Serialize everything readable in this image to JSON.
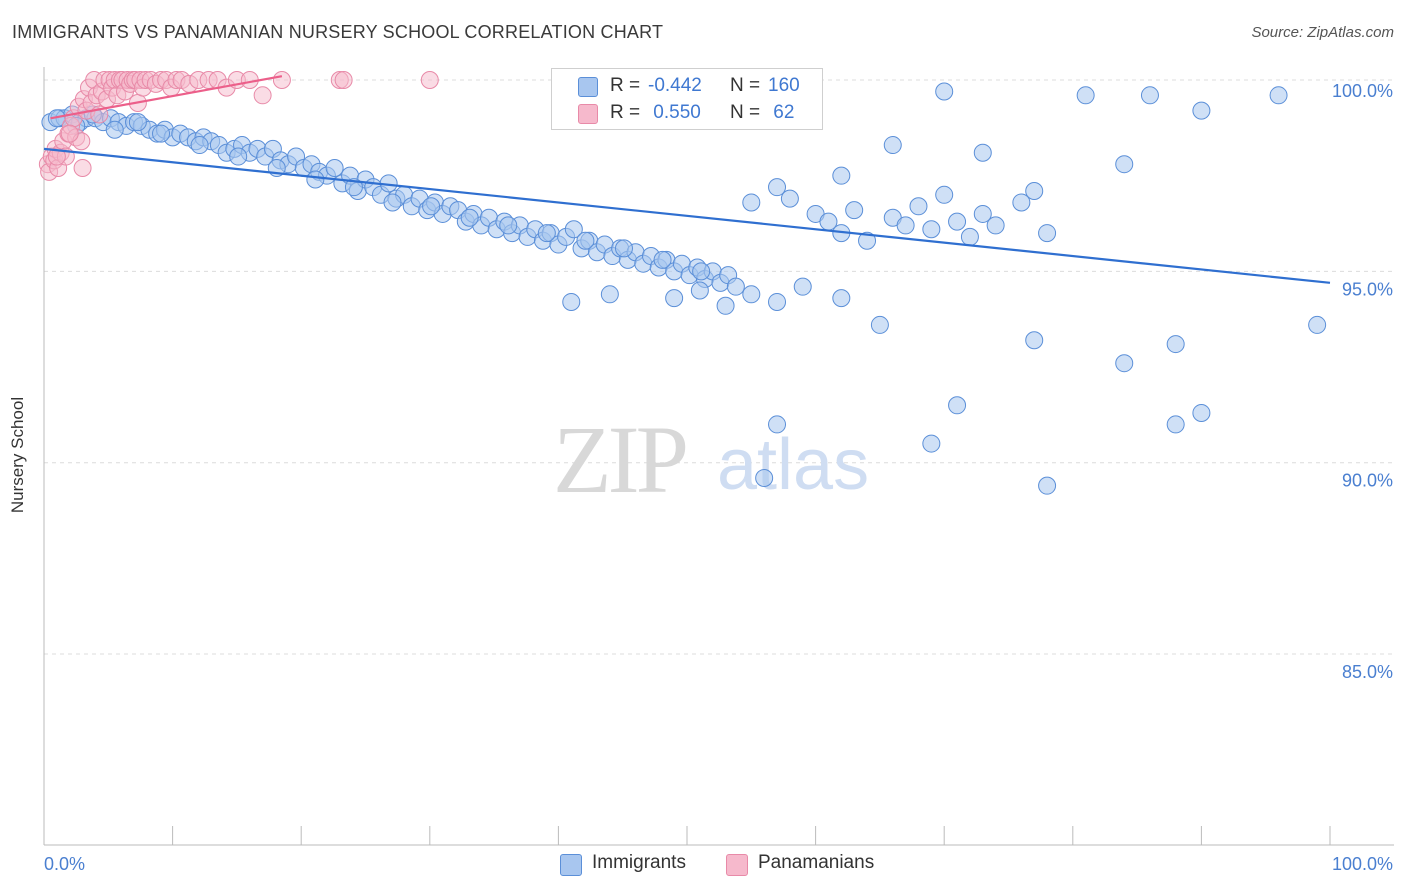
{
  "title": "IMMIGRANTS VS PANAMANIAN NURSERY SCHOOL CORRELATION CHART",
  "source": "Source: ZipAtlas.com",
  "watermark": {
    "zip": "ZIP",
    "atlas": "atlas"
  },
  "colors": {
    "blue_fill": "#a8c6ef",
    "blue_stroke": "#5b8fd8",
    "blue_line": "#2f6fd0",
    "pink_fill": "#f6b9cc",
    "pink_stroke": "#e88aa8",
    "pink_line": "#ec5f8a",
    "tick_label": "#4a7fd0",
    "grid": "#dcdcdc"
  },
  "legend": {
    "rows": [
      {
        "r_label": "R =",
        "r_value": "-0.442",
        "n_label": "N =",
        "n_value": "160"
      },
      {
        "r_label": "R =",
        "r_value": " 0.550",
        "n_label": "N =",
        "n_value": " 62"
      }
    ]
  },
  "bottom_legend": {
    "immigrants": "Immigrants",
    "panamanians": "Panamanians"
  },
  "chart_data": {
    "type": "scatter",
    "title": "IMMIGRANTS VS PANAMANIAN NURSERY SCHOOL CORRELATION CHART",
    "xlabel": "",
    "ylabel": "Nursery School",
    "xlim": [
      0,
      105
    ],
    "ylim": [
      80.5,
      100.3
    ],
    "x_tick_labels": [
      "0.0%",
      "100.0%"
    ],
    "y_ticks": [
      100,
      95,
      90,
      85
    ],
    "y_tick_labels": [
      "100.0%",
      "95.0%",
      "90.0%",
      "85.0%"
    ],
    "x_minor_ticks": [
      0,
      10,
      20,
      30,
      40,
      50,
      60,
      70,
      80,
      90,
      100
    ],
    "series": [
      {
        "name": "Immigrants",
        "color": "#a8c6ef",
        "trend": {
          "x": [
            0,
            100
          ],
          "y": [
            98.2,
            94.7
          ]
        },
        "points": [
          [
            0.5,
            98.9
          ],
          [
            1.2,
            99.0
          ],
          [
            1.6,
            99.0
          ],
          [
            2.2,
            99.1
          ],
          [
            2.8,
            98.9
          ],
          [
            3.3,
            99.0
          ],
          [
            4.0,
            99.0
          ],
          [
            4.6,
            98.9
          ],
          [
            5.2,
            99.0
          ],
          [
            5.8,
            98.9
          ],
          [
            6.4,
            98.8
          ],
          [
            7.0,
            98.9
          ],
          [
            7.6,
            98.8
          ],
          [
            8.2,
            98.7
          ],
          [
            8.8,
            98.6
          ],
          [
            9.4,
            98.7
          ],
          [
            10.0,
            98.5
          ],
          [
            10.6,
            98.6
          ],
          [
            11.2,
            98.5
          ],
          [
            11.8,
            98.4
          ],
          [
            12.4,
            98.5
          ],
          [
            13.0,
            98.4
          ],
          [
            13.6,
            98.3
          ],
          [
            14.2,
            98.1
          ],
          [
            14.8,
            98.2
          ],
          [
            15.4,
            98.3
          ],
          [
            16.0,
            98.1
          ],
          [
            16.6,
            98.2
          ],
          [
            17.2,
            98.0
          ],
          [
            17.8,
            98.2
          ],
          [
            18.4,
            97.9
          ],
          [
            19.0,
            97.8
          ],
          [
            19.6,
            98.0
          ],
          [
            20.2,
            97.7
          ],
          [
            20.8,
            97.8
          ],
          [
            21.4,
            97.6
          ],
          [
            22.0,
            97.5
          ],
          [
            22.6,
            97.7
          ],
          [
            23.2,
            97.3
          ],
          [
            23.8,
            97.5
          ],
          [
            24.4,
            97.1
          ],
          [
            25.0,
            97.4
          ],
          [
            25.6,
            97.2
          ],
          [
            26.2,
            97.0
          ],
          [
            26.8,
            97.3
          ],
          [
            27.4,
            96.9
          ],
          [
            28.0,
            97.0
          ],
          [
            28.6,
            96.7
          ],
          [
            29.2,
            96.9
          ],
          [
            29.8,
            96.6
          ],
          [
            30.4,
            96.8
          ],
          [
            31.0,
            96.5
          ],
          [
            31.6,
            96.7
          ],
          [
            32.2,
            96.6
          ],
          [
            32.8,
            96.3
          ],
          [
            33.4,
            96.5
          ],
          [
            34.0,
            96.2
          ],
          [
            34.6,
            96.4
          ],
          [
            35.2,
            96.1
          ],
          [
            35.8,
            96.3
          ],
          [
            36.4,
            96.0
          ],
          [
            37.0,
            96.2
          ],
          [
            37.6,
            95.9
          ],
          [
            38.2,
            96.1
          ],
          [
            38.8,
            95.8
          ],
          [
            39.4,
            96.0
          ],
          [
            40.0,
            95.7
          ],
          [
            40.6,
            95.9
          ],
          [
            41.2,
            96.1
          ],
          [
            41.8,
            95.6
          ],
          [
            42.4,
            95.8
          ],
          [
            43.0,
            95.5
          ],
          [
            43.6,
            95.7
          ],
          [
            44.2,
            95.4
          ],
          [
            44.8,
            95.6
          ],
          [
            45.4,
            95.3
          ],
          [
            46.0,
            95.5
          ],
          [
            46.6,
            95.2
          ],
          [
            47.2,
            95.4
          ],
          [
            47.8,
            95.1
          ],
          [
            48.4,
            95.3
          ],
          [
            49.0,
            95.0
          ],
          [
            49.6,
            95.2
          ],
          [
            50.2,
            94.9
          ],
          [
            50.8,
            95.1
          ],
          [
            51.4,
            94.8
          ],
          [
            52.0,
            95.0
          ],
          [
            52.6,
            94.7
          ],
          [
            53.2,
            94.9
          ],
          [
            53.8,
            94.6
          ],
          [
            1.0,
            99.0
          ],
          [
            2.5,
            98.8
          ],
          [
            3.8,
            99.1
          ],
          [
            5.5,
            98.7
          ],
          [
            7.3,
            98.9
          ],
          [
            9.1,
            98.6
          ],
          [
            12.1,
            98.3
          ],
          [
            15.1,
            98.0
          ],
          [
            18.1,
            97.7
          ],
          [
            21.1,
            97.4
          ],
          [
            24.1,
            97.2
          ],
          [
            27.1,
            96.8
          ],
          [
            30.1,
            96.7
          ],
          [
            33.1,
            96.4
          ],
          [
            36.1,
            96.2
          ],
          [
            39.1,
            96.0
          ],
          [
            42.1,
            95.8
          ],
          [
            45.1,
            95.6
          ],
          [
            48.1,
            95.3
          ],
          [
            51.1,
            95.0
          ],
          [
            55.0,
            96.8
          ],
          [
            57.0,
            97.2
          ],
          [
            58.0,
            96.9
          ],
          [
            60.0,
            96.5
          ],
          [
            61.0,
            96.3
          ],
          [
            62.0,
            96.0
          ],
          [
            63.0,
            96.6
          ],
          [
            64.0,
            95.8
          ],
          [
            66.0,
            96.4
          ],
          [
            67.0,
            96.2
          ],
          [
            68.0,
            96.7
          ],
          [
            69.0,
            96.1
          ],
          [
            70.0,
            97.0
          ],
          [
            71.0,
            96.3
          ],
          [
            72.0,
            95.9
          ],
          [
            73.0,
            96.5
          ],
          [
            74.0,
            96.2
          ],
          [
            76.0,
            96.8
          ],
          [
            77.0,
            97.1
          ],
          [
            78.0,
            96.0
          ],
          [
            49.0,
            94.3
          ],
          [
            51.0,
            94.5
          ],
          [
            53.0,
            94.1
          ],
          [
            55.0,
            94.4
          ],
          [
            57.0,
            94.2
          ],
          [
            59.0,
            94.6
          ],
          [
            62.0,
            94.3
          ],
          [
            65.0,
            93.6
          ],
          [
            44.0,
            94.4
          ],
          [
            41.0,
            94.2
          ],
          [
            84.0,
            97.8
          ],
          [
            73.0,
            98.1
          ],
          [
            66.0,
            98.3
          ],
          [
            62.0,
            97.5
          ],
          [
            90.0,
            99.2
          ],
          [
            99.0,
            93.6
          ],
          [
            81.0,
            99.6
          ],
          [
            70.0,
            99.7
          ],
          [
            86.0,
            99.6
          ],
          [
            96.0,
            99.6
          ],
          [
            77.0,
            93.2
          ],
          [
            84.0,
            92.6
          ],
          [
            88.0,
            93.1
          ],
          [
            90.0,
            91.3
          ],
          [
            71.0,
            91.5
          ],
          [
            69.0,
            90.5
          ],
          [
            57.0,
            91.0
          ],
          [
            56.0,
            89.6
          ],
          [
            78.0,
            89.4
          ],
          [
            88.0,
            91.0
          ]
        ]
      },
      {
        "name": "Panamanians",
        "color": "#f6b9cc",
        "trend": {
          "x": [
            0.5,
            18.5
          ],
          "y": [
            99.0,
            100.1
          ]
        },
        "points": [
          [
            0.3,
            97.8
          ],
          [
            0.4,
            97.6
          ],
          [
            0.6,
            98.0
          ],
          [
            0.8,
            97.9
          ],
          [
            0.9,
            98.2
          ],
          [
            1.1,
            97.7
          ],
          [
            1.3,
            98.1
          ],
          [
            1.5,
            98.4
          ],
          [
            1.7,
            98.0
          ],
          [
            1.9,
            98.6
          ],
          [
            2.1,
            98.8
          ],
          [
            2.3,
            99.0
          ],
          [
            2.5,
            98.5
          ],
          [
            2.7,
            99.3
          ],
          [
            2.9,
            98.4
          ],
          [
            3.1,
            99.5
          ],
          [
            3.3,
            99.2
          ],
          [
            3.5,
            99.8
          ],
          [
            3.7,
            99.4
          ],
          [
            3.9,
            100.0
          ],
          [
            4.1,
            99.6
          ],
          [
            4.3,
            99.1
          ],
          [
            4.5,
            99.7
          ],
          [
            4.7,
            100.0
          ],
          [
            4.9,
            99.5
          ],
          [
            5.1,
            100.0
          ],
          [
            5.3,
            99.8
          ],
          [
            5.5,
            100.0
          ],
          [
            5.7,
            99.6
          ],
          [
            5.9,
            100.0
          ],
          [
            6.1,
            100.0
          ],
          [
            6.3,
            99.7
          ],
          [
            6.5,
            100.0
          ],
          [
            6.7,
            99.9
          ],
          [
            6.9,
            100.0
          ],
          [
            7.1,
            100.0
          ],
          [
            7.3,
            99.4
          ],
          [
            7.5,
            100.0
          ],
          [
            7.7,
            99.8
          ],
          [
            7.9,
            100.0
          ],
          [
            8.3,
            100.0
          ],
          [
            8.7,
            99.9
          ],
          [
            9.1,
            100.0
          ],
          [
            9.5,
            100.0
          ],
          [
            9.9,
            99.8
          ],
          [
            10.3,
            100.0
          ],
          [
            10.7,
            100.0
          ],
          [
            11.3,
            99.9
          ],
          [
            12.0,
            100.0
          ],
          [
            12.8,
            100.0
          ],
          [
            13.5,
            100.0
          ],
          [
            14.2,
            99.8
          ],
          [
            15.0,
            100.0
          ],
          [
            16.0,
            100.0
          ],
          [
            17.0,
            99.6
          ],
          [
            18.5,
            100.0
          ],
          [
            23.0,
            100.0
          ],
          [
            23.3,
            100.0
          ],
          [
            30.0,
            100.0
          ],
          [
            3.0,
            97.7
          ],
          [
            1.0,
            98.0
          ],
          [
            2.0,
            98.6
          ]
        ]
      }
    ]
  }
}
